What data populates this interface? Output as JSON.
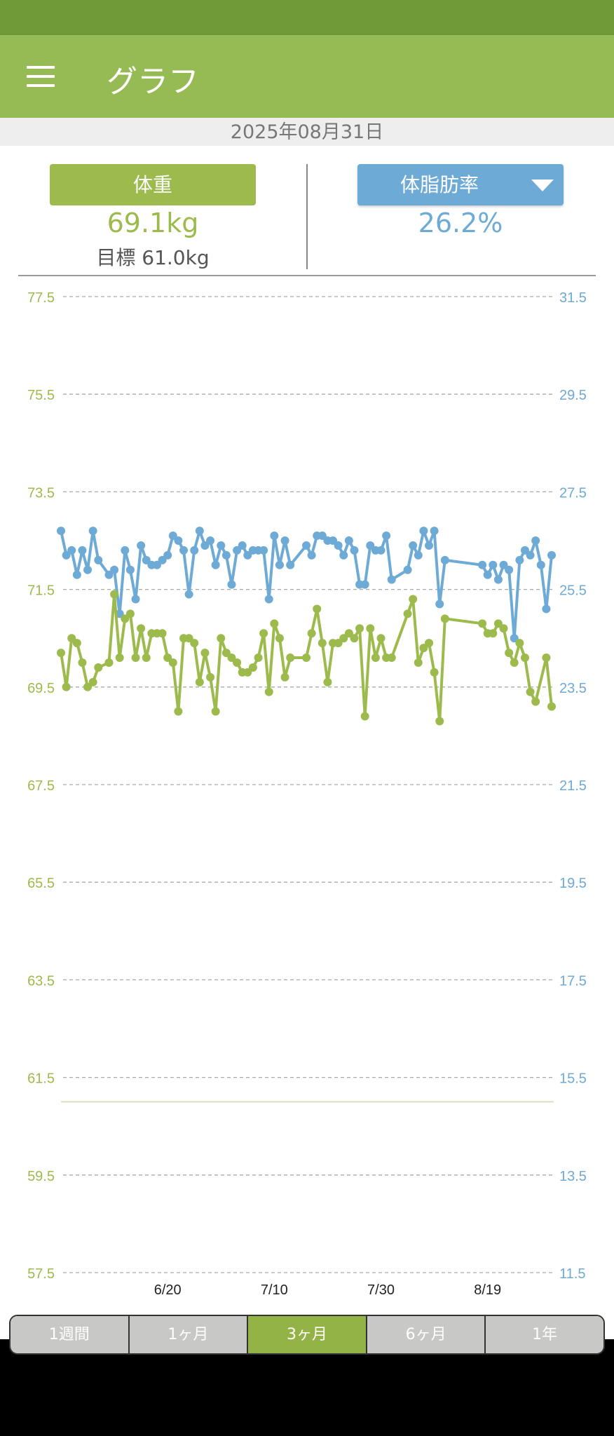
{
  "app": {
    "title": "グラフ",
    "menu_icon": "hamburger-icon"
  },
  "date": "2025年08月31日",
  "weight": {
    "label": "体重",
    "value": "69.1kg",
    "goal": "目標 61.0kg"
  },
  "fat": {
    "label": "体脂肪率",
    "value": "26.2%",
    "dropdown_icon": "triangle-down-icon"
  },
  "colors": {
    "weight": "#9dbb4c",
    "fat": "#6eaad6",
    "appbar": "#97bb54",
    "status": "#6f9a38"
  },
  "tabs": [
    {
      "label": "1週間",
      "active": false
    },
    {
      "label": "1ヶ月",
      "active": false
    },
    {
      "label": "3ヶ月",
      "active": true
    },
    {
      "label": "6ヶ月",
      "active": false
    },
    {
      "label": "1年",
      "active": false
    }
  ],
  "chart_data": {
    "type": "line",
    "x_unit": "days since 5/31",
    "xlim": [
      0,
      92
    ],
    "x_ticks": [
      {
        "day": 20,
        "label": "6/20"
      },
      {
        "day": 40,
        "label": "7/10"
      },
      {
        "day": 60,
        "label": "7/30"
      },
      {
        "day": 80,
        "label": "8/19"
      }
    ],
    "y_left": {
      "label": "体重 (kg)",
      "lim": [
        57.5,
        77.5
      ],
      "ticks": [
        "77.5",
        "75.5",
        "73.5",
        "71.5",
        "69.5",
        "67.5",
        "65.5",
        "63.5",
        "61.5",
        "59.5",
        "57.5"
      ]
    },
    "y_right": {
      "label": "体脂肪率 (%)",
      "lim": [
        11.5,
        31.5
      ],
      "ticks": [
        "31.5",
        "29.5",
        "27.5",
        "25.5",
        "23.5",
        "21.5",
        "19.5",
        "17.5",
        "15.5",
        "13.5",
        "11.5"
      ]
    },
    "goal_weight": 61.0,
    "grid": true,
    "series": [
      {
        "name": "体重",
        "axis": "left",
        "points": [
          [
            0,
            70.2
          ],
          [
            1,
            69.5
          ],
          [
            2,
            70.5
          ],
          [
            3,
            70.4
          ],
          [
            4,
            70.0
          ],
          [
            5,
            69.5
          ],
          [
            6,
            69.6
          ],
          [
            7,
            69.9
          ],
          [
            9,
            70.0
          ],
          [
            10,
            71.4
          ],
          [
            11,
            70.1
          ],
          [
            12,
            70.9
          ],
          [
            13,
            71.0
          ],
          [
            14,
            70.1
          ],
          [
            15,
            70.7
          ],
          [
            16,
            70.1
          ],
          [
            17,
            70.6
          ],
          [
            18,
            70.6
          ],
          [
            19,
            70.6
          ],
          [
            20,
            70.1
          ],
          [
            21,
            70.0
          ],
          [
            22,
            69.0
          ],
          [
            23,
            70.5
          ],
          [
            24,
            70.5
          ],
          [
            25,
            70.4
          ],
          [
            26,
            69.6
          ],
          [
            27,
            70.2
          ],
          [
            28,
            69.7
          ],
          [
            29,
            69.0
          ],
          [
            30,
            70.5
          ],
          [
            31,
            70.2
          ],
          [
            32,
            70.1
          ],
          [
            33,
            70.0
          ],
          [
            34,
            69.8
          ],
          [
            35,
            69.8
          ],
          [
            36,
            69.9
          ],
          [
            37,
            70.1
          ],
          [
            38,
            70.6
          ],
          [
            39,
            69.4
          ],
          [
            40,
            70.8
          ],
          [
            41,
            70.5
          ],
          [
            42,
            69.7
          ],
          [
            43,
            70.1
          ],
          [
            46,
            70.1
          ],
          [
            47,
            70.6
          ],
          [
            48,
            71.1
          ],
          [
            49,
            70.4
          ],
          [
            50,
            69.6
          ],
          [
            51,
            70.4
          ],
          [
            52,
            70.4
          ],
          [
            53,
            70.5
          ],
          [
            54,
            70.6
          ],
          [
            55,
            70.5
          ],
          [
            56,
            70.7
          ],
          [
            57,
            68.9
          ],
          [
            58,
            70.7
          ],
          [
            59,
            70.1
          ],
          [
            60,
            70.5
          ],
          [
            61,
            70.1
          ],
          [
            62,
            70.1
          ],
          [
            65,
            71.0
          ],
          [
            66,
            71.3
          ],
          [
            67,
            70.0
          ],
          [
            68,
            70.3
          ],
          [
            69,
            70.4
          ],
          [
            70,
            69.8
          ],
          [
            71,
            68.8
          ],
          [
            72,
            70.9
          ],
          [
            79,
            70.8
          ],
          [
            80,
            70.6
          ],
          [
            81,
            70.6
          ],
          [
            82,
            70.8
          ],
          [
            83,
            70.7
          ],
          [
            84,
            70.2
          ],
          [
            85,
            70.0
          ],
          [
            86,
            70.4
          ],
          [
            87,
            70.1
          ],
          [
            88,
            69.4
          ],
          [
            89,
            69.2
          ],
          [
            91,
            70.1
          ],
          [
            92,
            69.1
          ]
        ]
      },
      {
        "name": "体脂肪率",
        "axis": "right",
        "points": [
          [
            0,
            26.7
          ],
          [
            1,
            26.2
          ],
          [
            2,
            26.3
          ],
          [
            3,
            25.8
          ],
          [
            4,
            26.3
          ],
          [
            5,
            25.9
          ],
          [
            6,
            26.7
          ],
          [
            7,
            26.1
          ],
          [
            9,
            25.8
          ],
          [
            10,
            25.9
          ],
          [
            11,
            25.0
          ],
          [
            12,
            26.3
          ],
          [
            13,
            25.9
          ],
          [
            14,
            25.3
          ],
          [
            15,
            26.4
          ],
          [
            16,
            26.1
          ],
          [
            17,
            26.0
          ],
          [
            18,
            26.0
          ],
          [
            19,
            26.1
          ],
          [
            20,
            26.2
          ],
          [
            21,
            26.6
          ],
          [
            22,
            26.5
          ],
          [
            23,
            26.3
          ],
          [
            24,
            25.4
          ],
          [
            25,
            26.3
          ],
          [
            26,
            26.7
          ],
          [
            27,
            26.4
          ],
          [
            28,
            26.5
          ],
          [
            29,
            26.0
          ],
          [
            30,
            26.4
          ],
          [
            31,
            26.2
          ],
          [
            32,
            25.6
          ],
          [
            33,
            26.3
          ],
          [
            34,
            26.4
          ],
          [
            35,
            26.2
          ],
          [
            36,
            26.3
          ],
          [
            37,
            26.3
          ],
          [
            38,
            26.3
          ],
          [
            39,
            25.3
          ],
          [
            40,
            26.6
          ],
          [
            41,
            26.0
          ],
          [
            42,
            26.5
          ],
          [
            43,
            26.0
          ],
          [
            46,
            26.4
          ],
          [
            47,
            26.2
          ],
          [
            48,
            26.6
          ],
          [
            49,
            26.6
          ],
          [
            50,
            26.5
          ],
          [
            51,
            26.5
          ],
          [
            52,
            26.4
          ],
          [
            53,
            26.2
          ],
          [
            54,
            26.5
          ],
          [
            55,
            26.3
          ],
          [
            56,
            25.6
          ],
          [
            57,
            25.6
          ],
          [
            58,
            26.4
          ],
          [
            59,
            26.3
          ],
          [
            60,
            26.3
          ],
          [
            61,
            26.6
          ],
          [
            62,
            25.7
          ],
          [
            65,
            25.9
          ],
          [
            66,
            26.4
          ],
          [
            67,
            26.2
          ],
          [
            68,
            26.7
          ],
          [
            69,
            26.4
          ],
          [
            70,
            26.7
          ],
          [
            71,
            25.2
          ],
          [
            72,
            26.1
          ],
          [
            79,
            26.0
          ],
          [
            80,
            25.8
          ],
          [
            81,
            26.0
          ],
          [
            82,
            25.7
          ],
          [
            83,
            26.0
          ],
          [
            84,
            25.9
          ],
          [
            85,
            24.5
          ],
          [
            86,
            26.1
          ],
          [
            87,
            26.3
          ],
          [
            88,
            26.2
          ],
          [
            89,
            26.5
          ],
          [
            90,
            26.0
          ],
          [
            91,
            25.1
          ],
          [
            92,
            26.2
          ]
        ]
      }
    ]
  }
}
